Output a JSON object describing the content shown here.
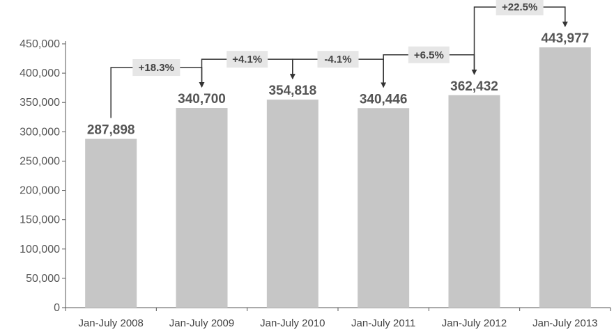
{
  "chart_data": {
    "type": "bar",
    "title": "",
    "xlabel": "",
    "ylabel": "",
    "categories": [
      "Jan-July 2008",
      "Jan-July 2009",
      "Jan-July 2010",
      "Jan-July 2011",
      "Jan-July 2012",
      "Jan-July 2013"
    ],
    "values": [
      287898,
      340700,
      354818,
      340446,
      362432,
      443977
    ],
    "value_labels": [
      "287,898",
      "340,700",
      "354,818",
      "340,446",
      "362,432",
      "443,977"
    ],
    "ylim": [
      0,
      450000
    ],
    "yticks": [
      0,
      50000,
      100000,
      150000,
      200000,
      250000,
      300000,
      350000,
      400000,
      450000
    ],
    "ytick_labels": [
      "0",
      "50,000",
      "100,000",
      "150,000",
      "200,000",
      "250,000",
      "300,000",
      "350,000",
      "400,000",
      "450,000"
    ],
    "grid": false,
    "legend": "none",
    "annotations": [
      {
        "from": 0,
        "to": 1,
        "label": "+18.3%"
      },
      {
        "from": 1,
        "to": 2,
        "label": "+4.1%"
      },
      {
        "from": 2,
        "to": 3,
        "label": "-4.1%"
      },
      {
        "from": 3,
        "to": 4,
        "label": "+6.5%"
      },
      {
        "from": 4,
        "to": 5,
        "label": "+22.5%"
      }
    ],
    "colors": {
      "bar": "#c6c6c6",
      "label_box": "#e6e6e6",
      "connector": "#333333",
      "axis": "#555555"
    }
  }
}
